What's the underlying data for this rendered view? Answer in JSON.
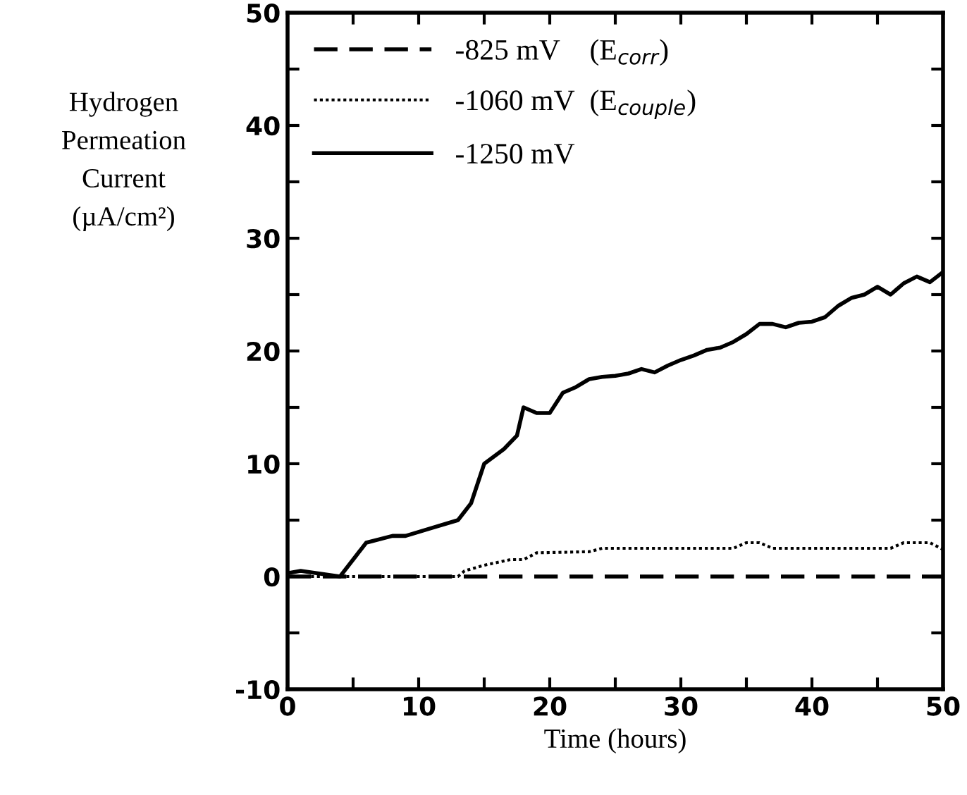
{
  "chart_data": {
    "type": "line",
    "xlabel": "Time (hours)",
    "ylabel": "Hydrogen\nPermeation\nCurrent\n(µA/cm²)",
    "xlim": [
      0,
      50
    ],
    "ylim": [
      -10,
      50
    ],
    "xticks": [
      0,
      {
        "value": 5,
        "label": null
      },
      10,
      {
        "value": 15,
        "label": null
      },
      20,
      {
        "value": 25,
        "label": null
      },
      30,
      {
        "value": 35,
        "label": null
      },
      40,
      {
        "value": 45,
        "label": null
      },
      50
    ],
    "yticks": [
      -10,
      {
        "value": -5,
        "label": null
      },
      0,
      {
        "value": 5,
        "label": null
      },
      10,
      {
        "value": 15,
        "label": null
      },
      20,
      {
        "value": 25,
        "label": null
      },
      30,
      {
        "value": 35,
        "label": null
      },
      40,
      {
        "value": 45,
        "label": null
      },
      50
    ],
    "grid": false,
    "legend": "top left",
    "series": [
      {
        "name": "-825 mV    (E$_{corr}$)",
        "color": "#000000",
        "line_style": "dashed",
        "x": [
          0,
          50
        ],
        "values": [
          0,
          0
        ]
      },
      {
        "name": "-1060 mV  (E$_{couple}$)",
        "color": "#000000",
        "line_style": "dotted",
        "x": [
          0,
          13,
          13.5,
          15,
          17,
          18,
          19,
          23,
          24,
          34,
          35,
          36,
          37,
          46,
          47,
          49,
          50
        ],
        "values": [
          0,
          0,
          0.5,
          1,
          1.5,
          1.5,
          2.1,
          2.2,
          2.5,
          2.5,
          3,
          3,
          2.5,
          2.5,
          3,
          3,
          2.4
        ]
      },
      {
        "name": "-1250 mV",
        "color": "#000000",
        "line_style": "solid",
        "x": [
          0,
          1,
          4,
          6,
          8,
          9,
          11,
          13,
          14,
          15,
          16.5,
          17.5,
          18,
          19,
          20,
          21,
          22,
          23,
          24,
          25,
          26,
          27,
          28,
          29,
          30,
          31,
          32,
          33,
          34,
          35,
          36,
          37,
          38,
          39,
          40,
          41,
          42,
          43,
          44,
          45,
          46,
          47,
          48,
          49,
          50
        ],
        "values": [
          0.3,
          0.5,
          0,
          3,
          3.6,
          3.6,
          4.3,
          5,
          6.5,
          10,
          11.3,
          12.5,
          15,
          14.5,
          14.5,
          16.3,
          16.8,
          17.5,
          17.7,
          17.8,
          18,
          18.4,
          18.1,
          18.7,
          19.2,
          19.6,
          20.1,
          20.3,
          20.8,
          21.5,
          22.4,
          22.4,
          22.1,
          22.5,
          22.6,
          23,
          24,
          24.7,
          25,
          25.7,
          25,
          26,
          26.6,
          26.1,
          27
        ]
      }
    ]
  }
}
